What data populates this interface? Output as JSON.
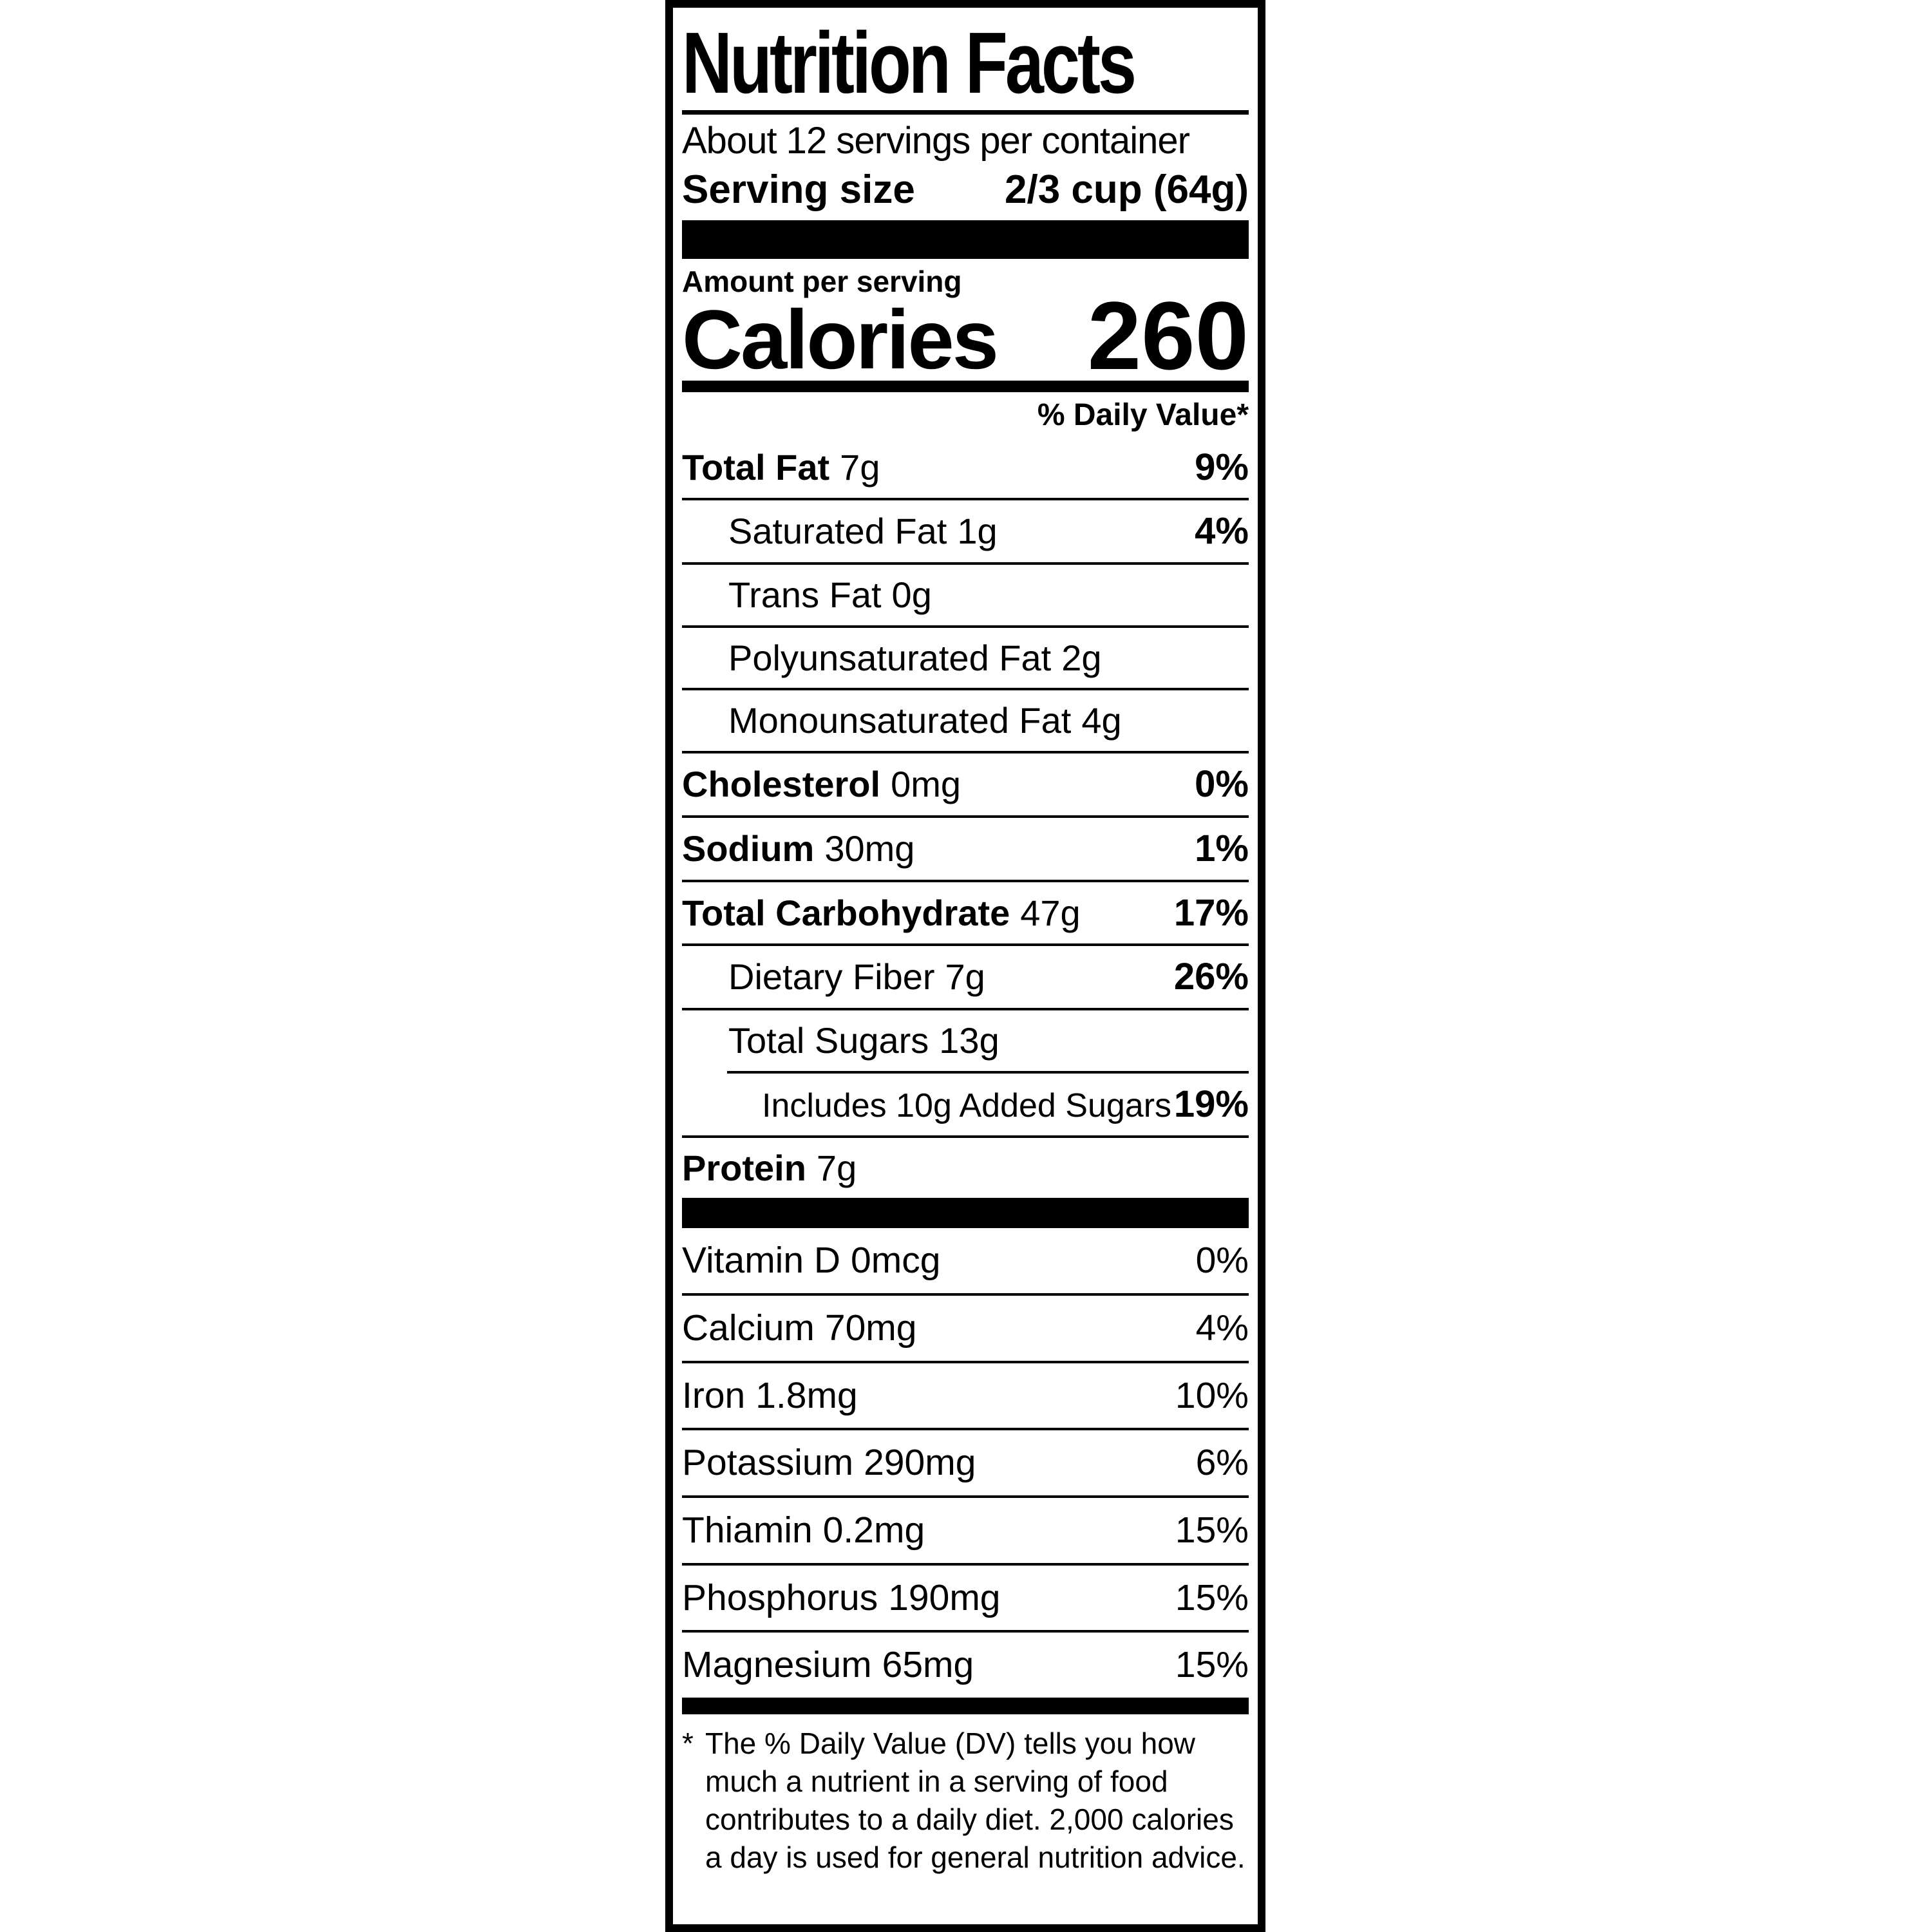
{
  "colors": {
    "ink": "#000000",
    "paper": "#ffffff"
  },
  "label": {
    "title": "Nutrition Facts",
    "servings_per_container": "About 12 servings per container",
    "serving_size_label": "Serving size",
    "serving_size_value": "2/3 cup (64g)",
    "amount_per_serving": "Amount per serving",
    "calories_label": "Calories",
    "calories_value": "260",
    "daily_value_header": "% Daily Value*",
    "nutrients": [
      {
        "name": "Total Fat",
        "amount": "7g",
        "dv": "9%"
      },
      {
        "name": "Saturated Fat",
        "amount": "1g",
        "dv": "4%"
      },
      {
        "name": "Trans Fat",
        "amount": "0g",
        "dv": ""
      },
      {
        "name": "Polyunsaturated Fat",
        "amount": "2g",
        "dv": ""
      },
      {
        "name": "Monounsaturated Fat",
        "amount": "4g",
        "dv": ""
      },
      {
        "name": "Cholesterol",
        "amount": "0mg",
        "dv": "0%"
      },
      {
        "name": "Sodium",
        "amount": "30mg",
        "dv": "1%"
      },
      {
        "name": "Total Carbohydrate",
        "amount": "47g",
        "dv": "17%"
      },
      {
        "name": "Dietary Fiber",
        "amount": "7g",
        "dv": "26%"
      },
      {
        "name": "Total Sugars",
        "amount": "13g",
        "dv": ""
      },
      {
        "name": "Includes 10g Added Sugars",
        "amount": "",
        "dv": "19%"
      },
      {
        "name": "Protein",
        "amount": "7g",
        "dv": ""
      }
    ],
    "vitamins": [
      {
        "name": "Vitamin D",
        "amount": "0mcg",
        "dv": "0%"
      },
      {
        "name": "Calcium",
        "amount": "70mg",
        "dv": "4%"
      },
      {
        "name": "Iron",
        "amount": "1.8mg",
        "dv": "10%"
      },
      {
        "name": "Potassium",
        "amount": "290mg",
        "dv": "6%"
      },
      {
        "name": "Thiamin",
        "amount": "0.2mg",
        "dv": "15%"
      },
      {
        "name": "Phosphorus",
        "amount": "190mg",
        "dv": "15%"
      },
      {
        "name": "Magnesium",
        "amount": "65mg",
        "dv": "15%"
      }
    ],
    "footnote_marker": "*",
    "footnote": "The % Daily Value (DV) tells you how much a nutrient in a serving of food contributes to a daily diet. 2,000 calories a day is used for general nutrition advice."
  }
}
